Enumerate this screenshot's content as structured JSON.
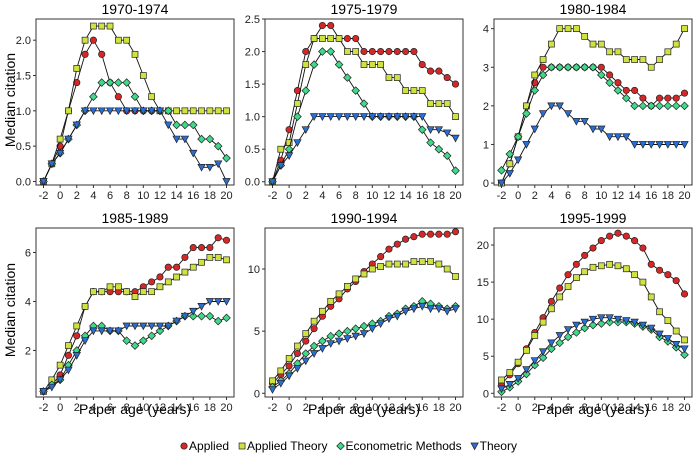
{
  "figure": {
    "y_axis_label": "Median citation",
    "x_axis_label": "Paper age (years)"
  },
  "series_styles": [
    {
      "name": "Applied",
      "color": "#d62728",
      "marker": "circle"
    },
    {
      "name": "Applied Theory",
      "color": "#cfe23f",
      "marker": "square"
    },
    {
      "name": "Econometric Methods",
      "color": "#3fd98a",
      "marker": "diamond"
    },
    {
      "name": "Theory",
      "color": "#2a6fd6",
      "marker": "triangle-down"
    }
  ],
  "chart_data": [
    {
      "type": "line",
      "title": "1970-1974",
      "x": [
        -2,
        -1,
        0,
        1,
        2,
        3,
        4,
        5,
        6,
        7,
        8,
        9,
        10,
        11,
        12,
        13,
        14,
        15,
        16,
        17,
        18,
        19,
        20
      ],
      "xticks": [
        -2,
        0,
        2,
        4,
        6,
        8,
        10,
        12,
        14,
        16,
        18,
        20
      ],
      "ylim": [
        -0.05,
        2.3
      ],
      "yticks": [
        "0.0",
        "0.5",
        "1.0",
        "1.5",
        "2.0"
      ],
      "series": [
        {
          "name": "Applied",
          "values": [
            0,
            0.25,
            0.5,
            1.0,
            1.4,
            1.8,
            2.0,
            1.8,
            1.4,
            1.2,
            1.0,
            1.0,
            1.0,
            1.0,
            1.0,
            null,
            null,
            null,
            null,
            null,
            null,
            null,
            null
          ]
        },
        {
          "name": "Applied Theory",
          "values": [
            0,
            0.25,
            0.6,
            1.0,
            1.6,
            2.0,
            2.2,
            2.2,
            2.2,
            2.0,
            2.0,
            1.8,
            1.5,
            1.2,
            1.0,
            1.0,
            1.0,
            1.0,
            1.0,
            1.0,
            1.0,
            1.0,
            1.0
          ]
        },
        {
          "name": "Econometric Methods",
          "values": [
            0,
            0.25,
            0.4,
            0.6,
            0.8,
            1.0,
            1.2,
            1.4,
            1.4,
            1.4,
            1.4,
            1.2,
            1.0,
            1.0,
            1.0,
            1.0,
            0.8,
            0.8,
            0.8,
            0.6,
            0.6,
            0.5,
            0.33
          ]
        },
        {
          "name": "Theory",
          "values": [
            0,
            0.25,
            0.4,
            0.6,
            0.8,
            1.0,
            1.0,
            1.0,
            1.0,
            1.0,
            1.0,
            1.0,
            1.0,
            1.0,
            1.0,
            0.8,
            0.6,
            0.6,
            0.4,
            0.2,
            0.2,
            0.25,
            0
          ]
        }
      ]
    },
    {
      "type": "line",
      "title": "1975-1979",
      "x": [
        -2,
        -1,
        0,
        1,
        2,
        3,
        4,
        5,
        6,
        7,
        8,
        9,
        10,
        11,
        12,
        13,
        14,
        15,
        16,
        17,
        18,
        19,
        20
      ],
      "xticks": [
        -2,
        0,
        2,
        4,
        6,
        8,
        10,
        12,
        14,
        16,
        18,
        20
      ],
      "ylim": [
        -0.05,
        2.5
      ],
      "yticks": [
        "0.0",
        "0.5",
        "1.0",
        "1.5",
        "2.0",
        "2.5"
      ],
      "series": [
        {
          "name": "Applied",
          "values": [
            0,
            0.33,
            0.8,
            1.4,
            2.0,
            2.2,
            2.4,
            2.4,
            2.2,
            2.2,
            2.2,
            2.0,
            2.0,
            2.0,
            2.0,
            2.0,
            2.0,
            2.0,
            1.8,
            1.7,
            1.7,
            1.6,
            1.5
          ]
        },
        {
          "name": "Applied Theory",
          "values": [
            0,
            0.5,
            0.6,
            1.2,
            1.8,
            2.2,
            2.2,
            2.2,
            2.2,
            2.0,
            2.0,
            1.8,
            1.8,
            1.8,
            1.6,
            1.6,
            1.4,
            1.4,
            1.4,
            1.2,
            1.2,
            1.2,
            1.0
          ]
        },
        {
          "name": "Econometric Methods",
          "values": [
            0,
            0.25,
            0.5,
            1.0,
            1.4,
            1.8,
            2.0,
            2.0,
            1.8,
            1.6,
            1.4,
            1.2,
            1.0,
            1.0,
            1.0,
            1.0,
            1.0,
            1.0,
            0.8,
            0.6,
            0.5,
            0.4,
            0.17
          ]
        },
        {
          "name": "Theory",
          "values": [
            0,
            0.25,
            0.4,
            0.6,
            0.8,
            1.0,
            1.0,
            1.0,
            1.0,
            1.0,
            1.0,
            1.0,
            1.0,
            1.0,
            1.0,
            1.0,
            1.0,
            1.0,
            1.0,
            0.8,
            0.8,
            0.75,
            0.67
          ]
        }
      ]
    },
    {
      "type": "line",
      "title": "1980-1984",
      "x": [
        -2,
        -1,
        0,
        1,
        2,
        3,
        4,
        5,
        6,
        7,
        8,
        9,
        10,
        11,
        12,
        13,
        14,
        15,
        16,
        17,
        18,
        19,
        20
      ],
      "xticks": [
        -2,
        0,
        2,
        4,
        6,
        8,
        10,
        12,
        14,
        16,
        18,
        20
      ],
      "ylim": [
        -0.05,
        4.25
      ],
      "yticks": [
        "0",
        "1",
        "2",
        "3",
        "4"
      ],
      "series": [
        {
          "name": "Applied",
          "values": [
            0,
            0.5,
            1.2,
            2.0,
            2.6,
            3.0,
            3.0,
            3.0,
            3.0,
            3.0,
            3.0,
            3.0,
            3.0,
            2.8,
            2.6,
            2.4,
            2.4,
            2.2,
            2.0,
            2.2,
            2.2,
            2.2,
            2.33
          ]
        },
        {
          "name": "Applied Theory",
          "values": [
            0,
            0.5,
            1.2,
            2.0,
            2.8,
            3.2,
            3.6,
            4.0,
            4.0,
            4.0,
            3.8,
            3.6,
            3.6,
            3.4,
            3.4,
            3.2,
            3.2,
            3.2,
            3.0,
            3.2,
            3.4,
            3.6,
            4.0
          ]
        },
        {
          "name": "Econometric Methods",
          "values": [
            0.33,
            0.75,
            1.2,
            1.8,
            2.4,
            2.8,
            3.0,
            3.0,
            3.0,
            3.0,
            3.0,
            3.0,
            2.8,
            2.6,
            2.4,
            2.2,
            2.0,
            2.0,
            2.0,
            2.0,
            2.0,
            2.0,
            2.0
          ]
        },
        {
          "name": "Theory",
          "values": [
            0,
            0.25,
            0.6,
            1.0,
            1.4,
            1.8,
            2.0,
            2.0,
            1.8,
            1.6,
            1.6,
            1.4,
            1.4,
            1.2,
            1.2,
            1.2,
            1.0,
            1.0,
            1.0,
            1.0,
            1.0,
            1.0,
            1.0
          ]
        }
      ]
    },
    {
      "type": "line",
      "title": "1985-1989",
      "x": [
        -2,
        -1,
        0,
        1,
        2,
        3,
        4,
        5,
        6,
        7,
        8,
        9,
        10,
        11,
        12,
        13,
        14,
        15,
        16,
        17,
        18,
        19,
        20
      ],
      "xticks": [
        -2,
        0,
        2,
        4,
        6,
        8,
        10,
        12,
        14,
        16,
        18,
        20
      ],
      "ylim": [
        0.1,
        7.0
      ],
      "yticks": [
        "2",
        "4",
        "6"
      ],
      "series": [
        {
          "name": "Applied",
          "values": [
            0.33,
            0.6,
            1.0,
            1.8,
            2.6,
            3.8,
            4.4,
            4.4,
            4.4,
            4.4,
            4.4,
            4.4,
            4.6,
            4.8,
            5.0,
            5.4,
            5.4,
            5.8,
            6.2,
            6.2,
            6.2,
            6.6,
            6.5
          ]
        },
        {
          "name": "Applied Theory",
          "values": [
            0.33,
            0.8,
            1.4,
            2.2,
            3.0,
            3.8,
            4.4,
            4.4,
            4.6,
            4.6,
            4.4,
            4.2,
            4.4,
            4.4,
            4.6,
            4.8,
            5.0,
            5.2,
            5.4,
            5.6,
            5.8,
            5.8,
            5.7
          ]
        },
        {
          "name": "Econometric Methods",
          "values": [
            0.33,
            0.6,
            0.8,
            1.4,
            2.0,
            2.6,
            3.0,
            3.0,
            2.8,
            2.8,
            2.4,
            2.2,
            2.4,
            2.6,
            2.8,
            3.0,
            3.2,
            3.4,
            3.4,
            3.4,
            3.4,
            3.2,
            3.33
          ]
        },
        {
          "name": "Theory",
          "values": [
            0.33,
            0.5,
            0.8,
            1.2,
            1.8,
            2.4,
            2.8,
            2.8,
            2.8,
            2.8,
            3.0,
            3.0,
            3.0,
            3.0,
            3.0,
            3.0,
            3.2,
            3.4,
            3.6,
            3.8,
            4.0,
            4.0,
            4.0
          ]
        }
      ]
    },
    {
      "type": "line",
      "title": "1990-1994",
      "x": [
        -2,
        -1,
        0,
        1,
        2,
        3,
        4,
        5,
        6,
        7,
        8,
        9,
        10,
        11,
        12,
        13,
        14,
        15,
        16,
        17,
        18,
        19,
        20
      ],
      "xticks": [
        -2,
        0,
        2,
        4,
        6,
        8,
        10,
        12,
        14,
        16,
        18,
        20
      ],
      "ylim": [
        -0.3,
        13.3
      ],
      "yticks": [
        "0",
        "5",
        "10"
      ],
      "series": [
        {
          "name": "Applied",
          "values": [
            0.8,
            1.5,
            2.2,
            3.2,
            4.2,
            5.2,
            6.2,
            7.0,
            7.6,
            8.4,
            9.0,
            9.8,
            10.4,
            11.0,
            11.6,
            12.0,
            12.4,
            12.6,
            12.8,
            12.8,
            12.8,
            12.8,
            13.0
          ]
        },
        {
          "name": "Applied Theory",
          "values": [
            1.0,
            1.8,
            2.8,
            3.8,
            4.8,
            5.8,
            6.6,
            7.4,
            8.0,
            8.6,
            9.2,
            9.6,
            10.0,
            10.2,
            10.4,
            10.4,
            10.4,
            10.6,
            10.6,
            10.6,
            10.4,
            10.0,
            9.4
          ]
        },
        {
          "name": "Econometric Methods",
          "values": [
            0.5,
            1.0,
            1.6,
            2.4,
            3.2,
            3.8,
            4.2,
            4.6,
            4.8,
            5.0,
            5.2,
            5.4,
            5.6,
            5.8,
            6.2,
            6.4,
            6.8,
            7.0,
            7.4,
            7.2,
            7.0,
            6.8,
            7.0
          ]
        },
        {
          "name": "Theory",
          "values": [
            0.3,
            0.8,
            1.4,
            2.0,
            2.6,
            3.2,
            3.6,
            4.0,
            4.2,
            4.4,
            4.6,
            4.8,
            5.2,
            5.6,
            6.0,
            6.2,
            6.6,
            6.8,
            7.0,
            6.8,
            6.8,
            6.6,
            6.8
          ]
        }
      ]
    },
    {
      "type": "line",
      "title": "1995-1999",
      "x": [
        -2,
        -1,
        0,
        1,
        2,
        3,
        4,
        5,
        6,
        7,
        8,
        9,
        10,
        11,
        12,
        13,
        14,
        15,
        16,
        17,
        18,
        19,
        20
      ],
      "xticks": [
        -2,
        0,
        2,
        4,
        6,
        8,
        10,
        12,
        14,
        16,
        18,
        20
      ],
      "ylim": [
        -0.5,
        22.3
      ],
      "yticks": [
        "0",
        "5",
        "10",
        "15",
        "20"
      ],
      "series": [
        {
          "name": "Applied",
          "values": [
            1.2,
            2.5,
            4.0,
            6.0,
            8.2,
            10.2,
            12.4,
            14.2,
            16.0,
            17.4,
            18.6,
            19.6,
            20.6,
            21.2,
            21.6,
            21.2,
            20.6,
            19.6,
            17.4,
            16.6,
            16.0,
            15.2,
            13.4
          ]
        },
        {
          "name": "Applied Theory",
          "values": [
            1.8,
            2.8,
            4.2,
            5.8,
            7.8,
            9.6,
            11.4,
            13.0,
            14.4,
            15.6,
            16.4,
            17.0,
            17.2,
            17.4,
            17.2,
            16.8,
            16.0,
            15.0,
            13.0,
            11.0,
            9.8,
            8.4,
            7.2
          ]
        },
        {
          "name": "Econometric Methods",
          "values": [
            0.2,
            0.8,
            1.6,
            2.6,
            3.8,
            4.8,
            6.0,
            6.8,
            7.6,
            8.2,
            8.8,
            9.2,
            9.4,
            9.6,
            9.6,
            9.6,
            9.4,
            9.0,
            8.6,
            7.6,
            7.0,
            6.2,
            5.2
          ]
        },
        {
          "name": "Theory",
          "values": [
            0.6,
            1.2,
            2.0,
            3.2,
            4.4,
            5.6,
            6.8,
            7.8,
            8.6,
            9.2,
            9.6,
            10.0,
            10.2,
            10.2,
            10.0,
            9.8,
            9.6,
            9.2,
            8.8,
            8.0,
            7.4,
            6.6,
            6.0
          ]
        }
      ]
    }
  ]
}
